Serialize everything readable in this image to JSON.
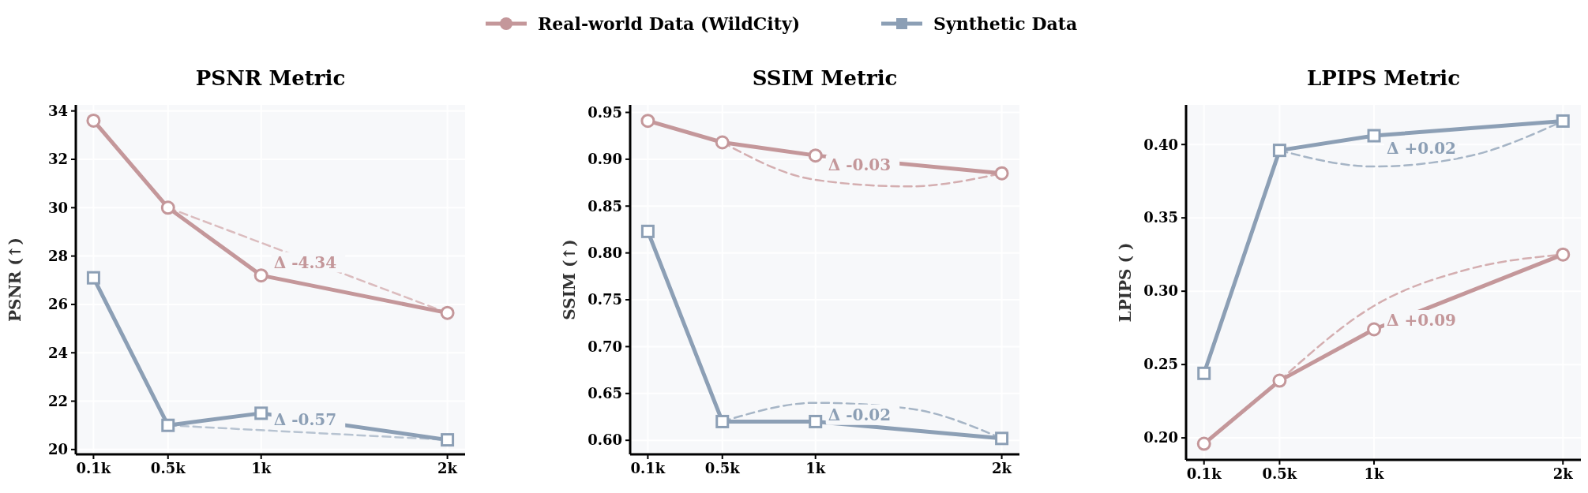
{
  "chart_data": [
    {
      "type": "line",
      "title": "PSNR Metric",
      "ylabel": "PSNR (↑)",
      "x": [
        0.1,
        0.5,
        1,
        2
      ],
      "xlim": [
        0.005,
        2.095
      ],
      "xticks": [
        {
          "value": 0.1,
          "label": "0.1k"
        },
        {
          "value": 0.5,
          "label": "0.5k"
        },
        {
          "value": 1,
          "label": "1k"
        },
        {
          "value": 2,
          "label": "2k"
        }
      ],
      "ylim": [
        19.8,
        34.25
      ],
      "yticks": [
        20,
        22,
        24,
        26,
        28,
        30,
        32,
        34
      ],
      "grid": true,
      "legend": "top",
      "marker": "circle",
      "line_style": "solid",
      "series": [
        {
          "name": "Real-world Data (WildCity)",
          "color": "#c4979a",
          "marker": "circle",
          "values": [
            33.6,
            30.0,
            27.2,
            25.65
          ]
        },
        {
          "name": "Synthetic Data",
          "color": "#8c9fb5",
          "marker": "square",
          "values": [
            27.1,
            21.0,
            21.5,
            20.4
          ]
        },
        {
          "color": "#dbbcbe",
          "marker": "none",
          "line_style": "dashed",
          "x": [
            0.5,
            2
          ],
          "values": [
            30.0,
            25.65
          ]
        },
        {
          "color": "#b7c3d1",
          "marker": "none",
          "line_style": "dashed",
          "x": [
            0.5,
            2
          ],
          "values": [
            21.0,
            20.4
          ]
        }
      ],
      "annotations": [
        "Δ -4.34",
        "Δ -0.57"
      ]
    },
    {
      "type": "line",
      "title": "SSIM Metric",
      "ylabel": "SSIM (↑)",
      "x": [
        0.1,
        0.5,
        1,
        2
      ],
      "xlim": [
        0.005,
        2.095
      ],
      "xticks": [
        {
          "value": 0.1,
          "label": "0.1k"
        },
        {
          "value": 0.5,
          "label": "0.5k"
        },
        {
          "value": 1,
          "label": "1k"
        },
        {
          "value": 2,
          "label": "2k"
        }
      ],
      "ylim": [
        0.585,
        0.958
      ],
      "yticks": [
        {
          "value": 0.6,
          "label": "0.60"
        },
        {
          "value": 0.65,
          "label": "0.65"
        },
        {
          "value": 0.7,
          "label": "0.70"
        },
        {
          "value": 0.75,
          "label": "0.75"
        },
        {
          "value": 0.8,
          "label": "0.80"
        },
        {
          "value": 0.85,
          "label": "0.85"
        },
        {
          "value": 0.9,
          "label": "0.90"
        },
        {
          "value": 0.95,
          "label": "0.95"
        }
      ],
      "grid": true,
      "marker": "circle",
      "line_style": "solid",
      "series": [
        {
          "color": "#c4979a",
          "marker": "circle",
          "values": [
            0.941,
            0.918,
            0.904,
            0.885
          ]
        },
        {
          "color": "#8c9fb5",
          "marker": "square",
          "values": [
            0.823,
            0.62,
            0.62,
            0.602
          ]
        },
        {
          "color": "#d4aeb0",
          "marker": "none",
          "line_style": "dashed",
          "x": [
            0.5,
            1,
            1.5,
            2
          ],
          "values": [
            0.918,
            0.878,
            0.871,
            0.885
          ]
        },
        {
          "color": "#a6b5c6",
          "marker": "none",
          "line_style": "dashed",
          "x": [
            0.5,
            1,
            1.5,
            2
          ],
          "values": [
            0.62,
            0.64,
            0.634,
            0.602
          ]
        }
      ],
      "annotations": [
        "Δ -0.03",
        "Δ -0.02"
      ]
    },
    {
      "type": "line",
      "title": "LPIPS Metric",
      "ylabel": "LPIPS ( )",
      "x": [
        0.1,
        0.5,
        1,
        2
      ],
      "xlim": [
        0.005,
        2.095
      ],
      "xticks": [
        {
          "value": 0.1,
          "label": "0.1k"
        },
        {
          "value": 0.5,
          "label": "0.5k"
        },
        {
          "value": 1,
          "label": "1k"
        },
        {
          "value": 2,
          "label": "2k"
        }
      ],
      "ylim": [
        0.185,
        0.427
      ],
      "yticks": [
        {
          "value": 0.2,
          "label": "0.20"
        },
        {
          "value": 0.25,
          "label": "0.25"
        },
        {
          "value": 0.3,
          "label": "0.30"
        },
        {
          "value": 0.35,
          "label": "0.35"
        },
        {
          "value": 0.4,
          "label": "0.40"
        }
      ],
      "grid": true,
      "marker": "circle",
      "line_style": "solid",
      "series": [
        {
          "color": "#c4979a",
          "marker": "circle",
          "values": [
            0.196,
            0.239,
            0.274,
            0.325
          ]
        },
        {
          "color": "#8c9fb5",
          "marker": "square",
          "values": [
            0.244,
            0.396,
            0.406,
            0.416
          ]
        },
        {
          "color": "#d4aeb0",
          "marker": "none",
          "line_style": "dashed",
          "x": [
            0.5,
            1,
            1.5,
            2
          ],
          "values": [
            0.239,
            0.29,
            0.315,
            0.325
          ]
        },
        {
          "color": "#a6b5c6",
          "marker": "none",
          "line_style": "dashed",
          "x": [
            0.5,
            1,
            1.5,
            2
          ],
          "values": [
            0.396,
            0.385,
            0.392,
            0.416
          ]
        }
      ],
      "annotations": [
        "Δ +0.09",
        "Δ +0.02"
      ]
    }
  ]
}
